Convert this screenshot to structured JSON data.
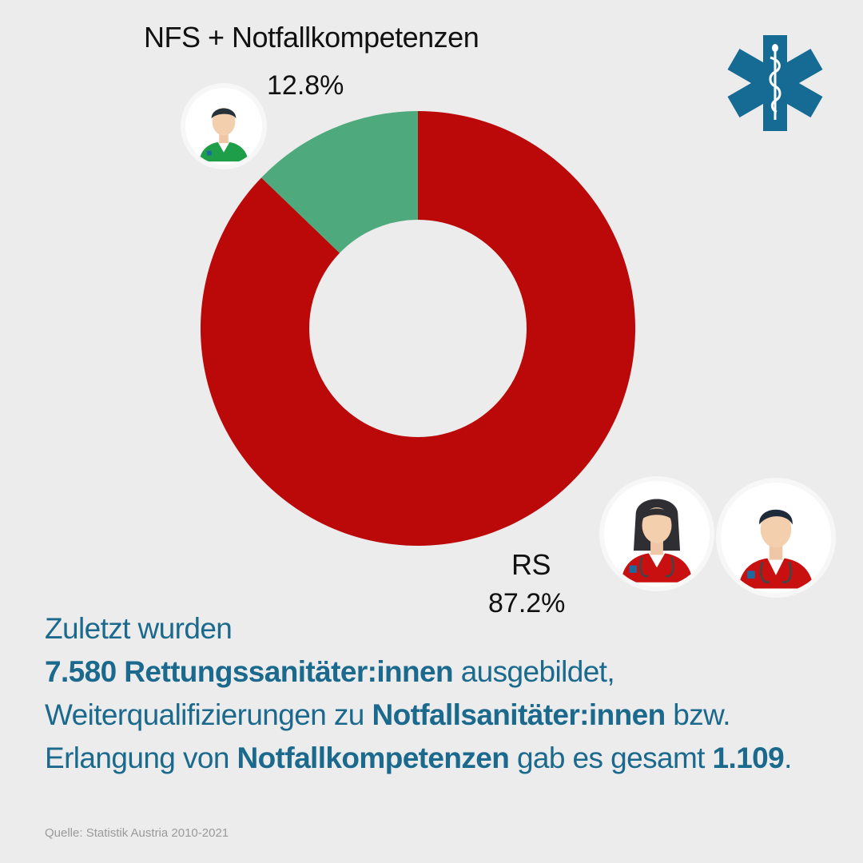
{
  "chart_data": {
    "type": "pie",
    "variant": "donut",
    "slices": [
      {
        "label": "RS",
        "value": 87.2,
        "value_label": "87.2%",
        "color": "#bb0808"
      },
      {
        "label": "NFS + Notfallkompetenzen",
        "value": 12.8,
        "value_label": "12.8%",
        "color": "#4ea97c"
      }
    ]
  },
  "icons": {
    "logo": "star-of-life-icon",
    "avatars": [
      "paramedic-male-green-icon",
      "paramedic-female-red-icon",
      "paramedic-male-red-icon"
    ]
  },
  "colors": {
    "background": "#ececec",
    "text_accent": "#1b6a8e",
    "logo": "#156b93"
  },
  "summary": {
    "line1": "Zuletzt wurden",
    "line2_bold": "7.580 Rettungssanitäter:innen",
    "line2_rest": " ausgebildet,",
    "line3_pre": "Weiterqualifizierungen zu ",
    "line3_bold": "Notfallsanitäter:innen",
    "line3_post": " bzw.",
    "line4_pre": "Erlangung von ",
    "line4_bold1": "Notfallkompetenzen",
    "line4_mid": " gab es gesamt ",
    "line4_bold2": "1.109",
    "line4_post": "."
  },
  "source": "Quelle: Statistik Austria 2010-2021"
}
